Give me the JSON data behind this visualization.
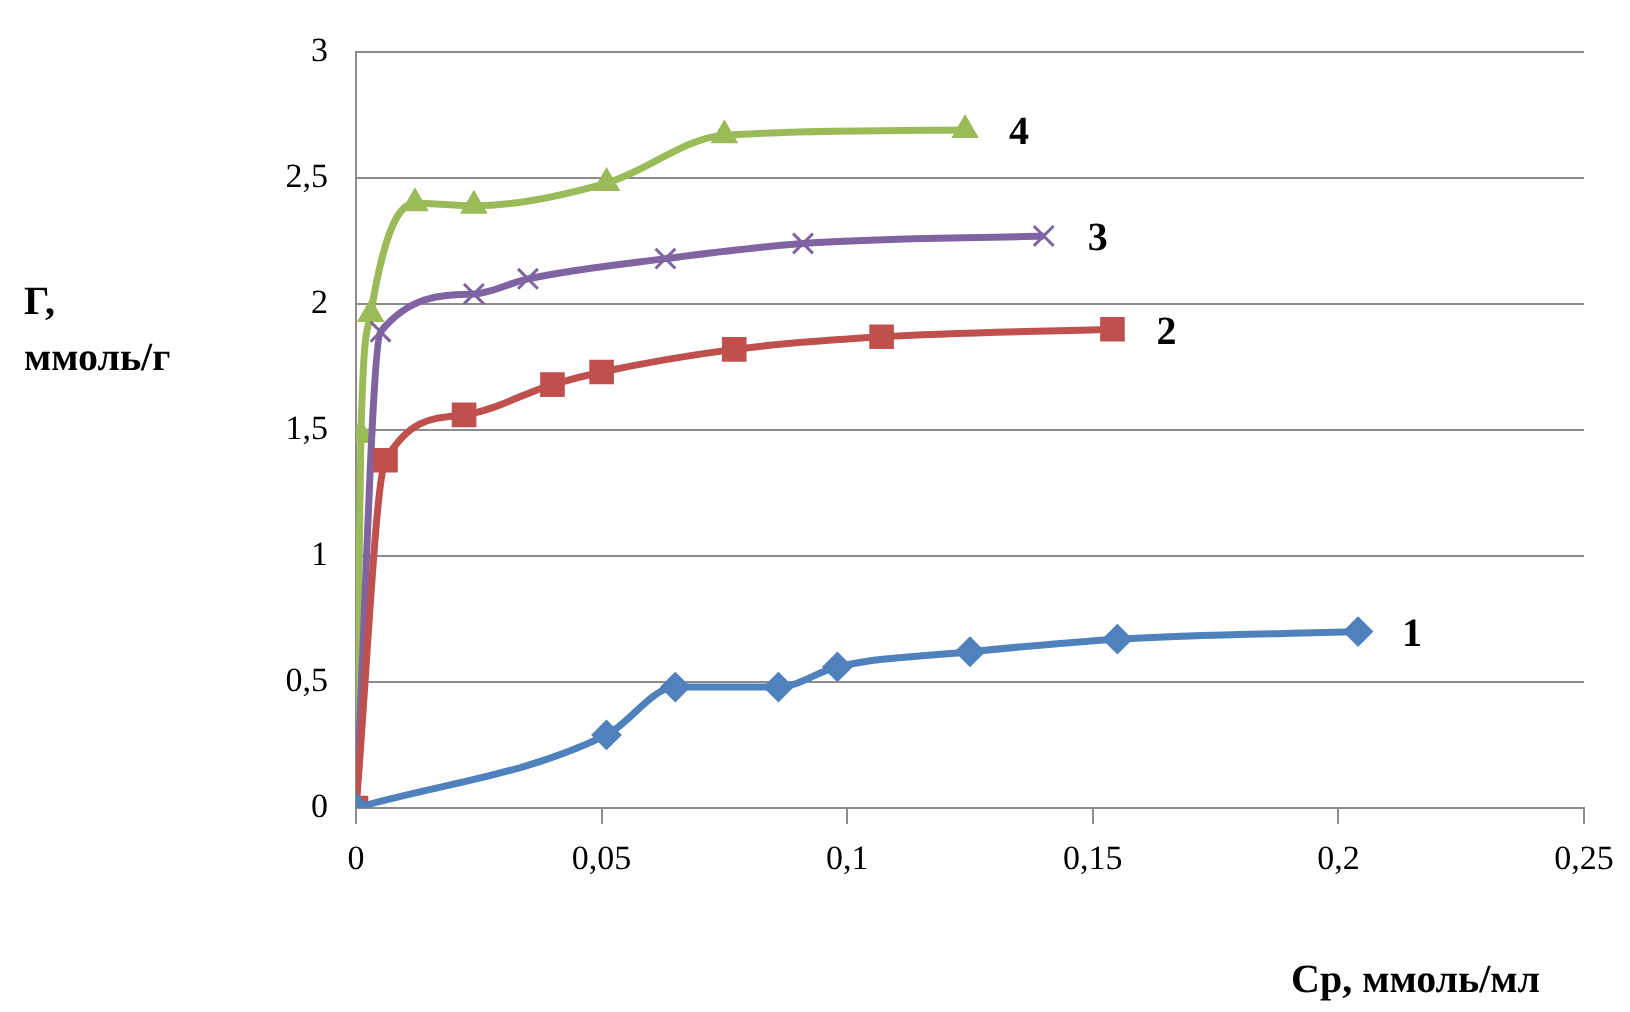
{
  "chart_data": {
    "type": "line",
    "xlabel": "Ср, ммоль/мл",
    "ylabel": "Г,\nммоль/г",
    "xlim": [
      0,
      0.25
    ],
    "ylim": [
      0,
      3
    ],
    "xticks": [
      0,
      {
        "value": 0.05,
        "label": "0,05"
      },
      {
        "value": 0.1,
        "label": "0,1"
      },
      {
        "value": 0.15,
        "label": "0,15"
      },
      {
        "value": 0.2,
        "label": "0,2"
      },
      {
        "value": 0.25,
        "label": "0,25"
      }
    ],
    "yticks": [
      0,
      {
        "value": 0.5,
        "label": "0,5"
      },
      1,
      {
        "value": 1.5,
        "label": "1,5"
      },
      2,
      {
        "value": 2.5,
        "label": "2,5"
      },
      3
    ],
    "grid": "y",
    "legend": false,
    "series": [
      {
        "name": "1",
        "color": "#4f81bd",
        "marker": "diamond",
        "x": [
          0,
          0.051,
          0.065,
          0.086,
          0.098,
          0.125,
          0.155,
          0.204
        ],
        "values": [
          0,
          0.29,
          0.48,
          0.48,
          0.56,
          0.62,
          0.67,
          0.7
        ]
      },
      {
        "name": "2",
        "color": "#c0504d",
        "marker": "square",
        "x": [
          0,
          0.006,
          0.022,
          0.04,
          0.05,
          0.077,
          0.107,
          0.154
        ],
        "values": [
          0,
          1.38,
          1.56,
          1.68,
          1.73,
          1.82,
          1.87,
          1.9
        ]
      },
      {
        "name": "3",
        "color": "#8064a2",
        "marker": "cross",
        "x": [
          0,
          0.005,
          0.024,
          0.035,
          0.063,
          0.091,
          0.14
        ],
        "values": [
          0,
          1.89,
          2.04,
          2.1,
          2.18,
          2.24,
          2.27
        ]
      },
      {
        "name": "4",
        "color": "#9bbb59",
        "marker": "triangle",
        "x": [
          0,
          0.001,
          0.003,
          0.012,
          0.024,
          0.051,
          0.075,
          0.124
        ],
        "values": [
          0,
          1.48,
          1.96,
          2.4,
          2.39,
          2.48,
          2.67,
          2.69
        ]
      }
    ]
  }
}
